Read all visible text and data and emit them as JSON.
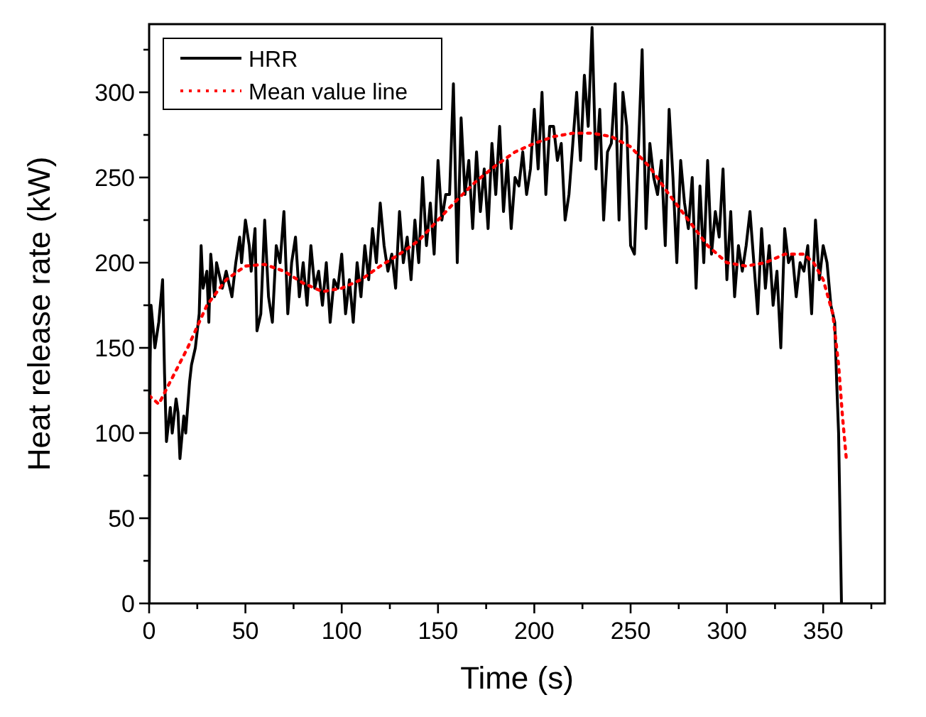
{
  "chart_data": {
    "type": "line",
    "xlabel": "Time (s)",
    "ylabel": "Heat release rate (kW)",
    "xlim": [
      0,
      382
    ],
    "ylim": [
      0,
      340
    ],
    "xticks": [
      0,
      {
        "value": 25,
        "label": null
      },
      50,
      {
        "value": 75,
        "label": null
      },
      100,
      {
        "value": 125,
        "label": null
      },
      150,
      {
        "value": 175,
        "label": null
      },
      200,
      {
        "value": 225,
        "label": null
      },
      250,
      {
        "value": 275,
        "label": null
      },
      300,
      {
        "value": 325,
        "label": null
      },
      350,
      {
        "value": 375,
        "label": null
      }
    ],
    "yticks": [
      0,
      {
        "value": 25,
        "label": null
      },
      50,
      {
        "value": 75,
        "label": null
      },
      100,
      {
        "value": 125,
        "label": null
      },
      150,
      {
        "value": 175,
        "label": null
      },
      200,
      {
        "value": 225,
        "label": null
      },
      250,
      {
        "value": 275,
        "label": null
      },
      300,
      {
        "value": 325,
        "label": null
      }
    ],
    "grid": false,
    "legend": "top left",
    "marker": "none",
    "series": [
      {
        "name": "HRR",
        "color": "#000000",
        "line_style": "solid",
        "x": [
          0,
          0.5,
          1,
          3,
          5,
          7,
          8,
          9,
          11,
          12,
          14,
          15,
          16,
          18,
          19,
          21,
          22,
          24,
          26,
          27,
          28,
          30,
          31,
          32,
          34,
          35,
          38,
          40,
          43,
          45,
          47,
          48,
          50,
          52,
          53,
          55,
          56,
          58,
          60,
          62,
          64,
          66,
          68,
          70,
          72,
          74,
          76,
          78,
          80,
          82,
          84,
          86,
          88,
          90,
          92,
          94,
          96,
          98,
          100,
          102,
          104,
          106,
          108,
          110,
          112,
          114,
          116,
          118,
          120,
          122,
          124,
          126,
          128,
          130,
          132,
          134,
          136,
          138,
          140,
          142,
          144,
          146,
          148,
          150,
          152,
          154,
          156,
          158,
          160,
          162,
          164,
          166,
          168,
          170,
          172,
          174,
          176,
          178,
          180,
          182,
          184,
          186,
          188,
          190,
          192,
          194,
          196,
          198,
          200,
          202,
          204,
          206,
          208,
          210,
          212,
          214,
          216,
          218,
          220,
          222,
          224,
          226,
          228,
          230,
          232,
          234,
          236,
          238,
          240,
          242,
          244,
          246,
          248,
          250,
          252,
          254,
          256,
          258,
          260,
          262,
          264,
          266,
          268,
          270,
          272,
          274,
          276,
          278,
          280,
          282,
          284,
          286,
          288,
          290,
          292,
          294,
          296,
          298,
          300,
          302,
          304,
          306,
          308,
          310,
          312,
          314,
          316,
          318,
          320,
          322,
          324,
          326,
          328,
          330,
          332,
          334,
          336,
          338,
          340,
          342,
          344,
          346,
          348,
          350,
          352,
          354,
          356,
          357,
          358,
          359.5
        ],
        "values": [
          0,
          140,
          175,
          150,
          165,
          190,
          135,
          95,
          115,
          100,
          120,
          112,
          85,
          110,
          100,
          130,
          140,
          150,
          170,
          210,
          185,
          195,
          165,
          205,
          180,
          200,
          185,
          195,
          180,
          200,
          215,
          200,
          225,
          210,
          195,
          220,
          160,
          170,
          225,
          180,
          165,
          210,
          200,
          230,
          170,
          200,
          215,
          180,
          200,
          175,
          210,
          185,
          195,
          175,
          200,
          165,
          190,
          185,
          205,
          170,
          190,
          165,
          200,
          180,
          210,
          190,
          220,
          200,
          235,
          210,
          195,
          205,
          185,
          230,
          200,
          215,
          190,
          225,
          200,
          250,
          210,
          235,
          205,
          260,
          225,
          240,
          240,
          305,
          200,
          285,
          240,
          260,
          220,
          265,
          230,
          255,
          220,
          270,
          240,
          280,
          230,
          260,
          220,
          250,
          245,
          265,
          240,
          255,
          290,
          255,
          300,
          240,
          280,
          280,
          260,
          270,
          225,
          240,
          270,
          300,
          260,
          310,
          280,
          338,
          255,
          290,
          225,
          265,
          270,
          305,
          225,
          300,
          280,
          210,
          205,
          265,
          325,
          220,
          270,
          250,
          240,
          260,
          210,
          290,
          250,
          200,
          260,
          235,
          220,
          250,
          185,
          245,
          200,
          260,
          205,
          230,
          215,
          255,
          190,
          230,
          180,
          210,
          195,
          210,
          230,
          200,
          170,
          220,
          185,
          210,
          175,
          195,
          150,
          220,
          200,
          205,
          180,
          200,
          195,
          210,
          170,
          225,
          190,
          210,
          200,
          175,
          165,
          130,
          100,
          0
        ]
      },
      {
        "name": "Mean value line",
        "color": "#ff0000",
        "line_style": "dotted",
        "x": [
          0,
          5,
          10,
          20,
          30,
          40,
          50,
          60,
          70,
          80,
          90,
          100,
          110,
          120,
          130,
          140,
          150,
          160,
          170,
          180,
          190,
          200,
          210,
          220,
          230,
          240,
          250,
          260,
          270,
          280,
          290,
          300,
          310,
          320,
          330,
          340,
          345,
          350,
          355,
          358,
          360,
          362
        ],
        "values": [
          122,
          117,
          128,
          150,
          175,
          190,
          198,
          199,
          195,
          188,
          183,
          185,
          190,
          198,
          205,
          213,
          225,
          237,
          248,
          257,
          265,
          270,
          274,
          276,
          276,
          274,
          268,
          256,
          240,
          225,
          210,
          200,
          198,
          200,
          205,
          205,
          200,
          190,
          170,
          140,
          110,
          85
        ]
      }
    ]
  }
}
